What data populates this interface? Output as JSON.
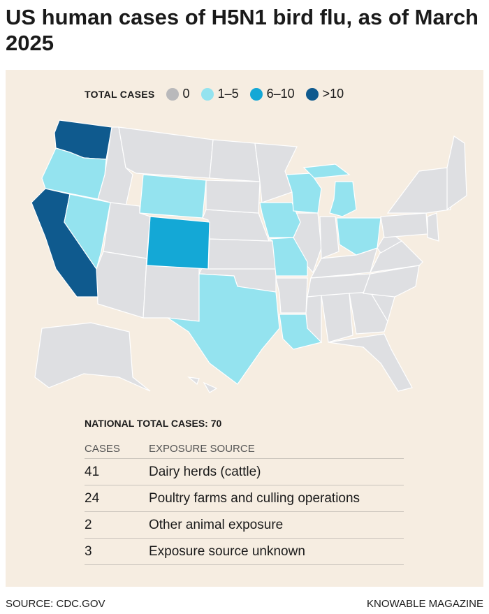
{
  "title": "US human cases of H5N1 bird flu, as of March 2025",
  "legend": {
    "label": "TOTAL CASES",
    "items": [
      {
        "label": "0",
        "color": "#b9b9bb"
      },
      {
        "label": "1–5",
        "color": "#94e3ef"
      },
      {
        "label": "6–10",
        "color": "#14a8d6"
      },
      {
        "label": ">10",
        "color": "#0f5a8e"
      }
    ]
  },
  "table": {
    "heading": "NATIONAL TOTAL CASES: 70",
    "columns": [
      "CASES",
      "EXPOSURE SOURCE"
    ],
    "rows": [
      [
        41,
        "Dairy herds (cattle)"
      ],
      [
        24,
        "Poultry farms and culling operations"
      ],
      [
        2,
        "Other animal exposure"
      ],
      [
        3,
        "Exposure source unknown"
      ]
    ]
  },
  "footer": {
    "source": "SOURCE: CDC.GOV",
    "credit": "KNOWABLE MAGAZINE"
  }
}
